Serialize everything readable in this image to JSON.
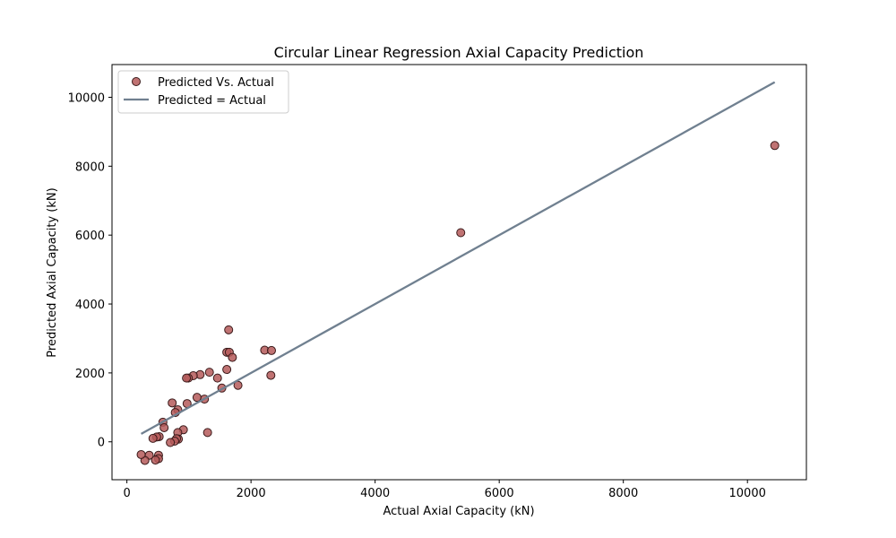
{
  "chart_data": {
    "type": "scatter",
    "title": "Circular Linear Regression Axial Capacity Prediction",
    "xlabel": "Actual Axial Capacity (kN)",
    "ylabel": "Predicted Axial Capacity (kN)",
    "xlim": [
      -240,
      10950
    ],
    "ylim": [
      -1100,
      10950
    ],
    "xticks": [
      0,
      2000,
      4000,
      6000,
      8000,
      10000
    ],
    "yticks": [
      0,
      2000,
      4000,
      6000,
      8000,
      10000
    ],
    "grid": false,
    "legend_position": "upper-left",
    "colors": {
      "scatter_fill": "#b55a5a",
      "scatter_edge": "#3a1a1a",
      "line": "#708090",
      "axes": "#000000"
    },
    "series": [
      {
        "name": "Predicted Vs. Actual",
        "kind": "scatter",
        "points": [
          [
            10440,
            8600
          ],
          [
            5380,
            6070
          ],
          [
            1640,
            3250
          ],
          [
            1610,
            2600
          ],
          [
            1650,
            2600
          ],
          [
            1700,
            2450
          ],
          [
            2220,
            2660
          ],
          [
            2330,
            2650
          ],
          [
            2320,
            1930
          ],
          [
            1790,
            1640
          ],
          [
            1610,
            2100
          ],
          [
            1530,
            1560
          ],
          [
            1460,
            1850
          ],
          [
            1330,
            2020
          ],
          [
            1250,
            1240
          ],
          [
            1300,
            270
          ],
          [
            1180,
            1950
          ],
          [
            1130,
            1290
          ],
          [
            1070,
            1920
          ],
          [
            990,
            1850
          ],
          [
            960,
            1850
          ],
          [
            970,
            1110
          ],
          [
            820,
            930
          ],
          [
            780,
            850
          ],
          [
            730,
            1130
          ],
          [
            910,
            350
          ],
          [
            820,
            270
          ],
          [
            830,
            80
          ],
          [
            800,
            90
          ],
          [
            770,
            20
          ],
          [
            700,
            -20
          ],
          [
            580,
            570
          ],
          [
            600,
            410
          ],
          [
            520,
            150
          ],
          [
            480,
            140
          ],
          [
            420,
            100
          ],
          [
            510,
            -390
          ],
          [
            510,
            -490
          ],
          [
            460,
            -530
          ],
          [
            360,
            -390
          ],
          [
            290,
            -540
          ],
          [
            230,
            -370
          ]
        ]
      },
      {
        "name": "Predicted = Actual",
        "kind": "line",
        "points": [
          [
            230,
            230
          ],
          [
            10440,
            10440
          ]
        ]
      }
    ]
  }
}
